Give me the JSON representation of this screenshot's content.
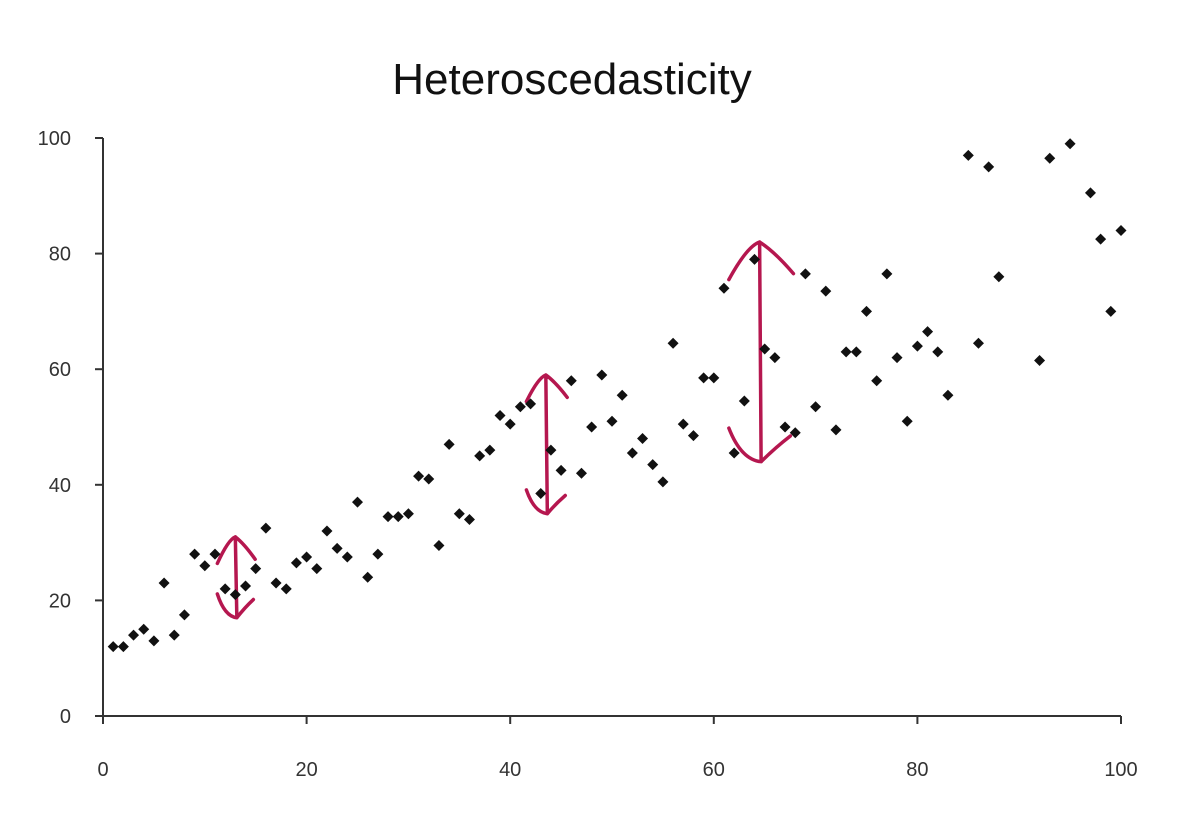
{
  "chart_data": {
    "type": "scatter",
    "title": "Heteroscedasticity",
    "xlabel": "",
    "ylabel": "",
    "xlim": [
      0,
      100
    ],
    "ylim": [
      0,
      100
    ],
    "x_ticks": [
      0,
      20,
      40,
      60,
      80,
      100
    ],
    "y_ticks": [
      0,
      20,
      40,
      60,
      80,
      100
    ],
    "grid": false,
    "legend": "none",
    "marker": "diamond",
    "point_color": "#111111",
    "annotation_color": "#b5174f",
    "points": [
      [
        1,
        12
      ],
      [
        2,
        12
      ],
      [
        3,
        14
      ],
      [
        4,
        15
      ],
      [
        5,
        13
      ],
      [
        6,
        23
      ],
      [
        7,
        14
      ],
      [
        8,
        17.5
      ],
      [
        9,
        28
      ],
      [
        10,
        26
      ],
      [
        11,
        28
      ],
      [
        12,
        22
      ],
      [
        13,
        21
      ],
      [
        14,
        22.5
      ],
      [
        15,
        25.5
      ],
      [
        16,
        32.5
      ],
      [
        17,
        23
      ],
      [
        18,
        22
      ],
      [
        19,
        26.5
      ],
      [
        20,
        27.5
      ],
      [
        21,
        25.5
      ],
      [
        22,
        32
      ],
      [
        23,
        29
      ],
      [
        24,
        27.5
      ],
      [
        25,
        37
      ],
      [
        26,
        24
      ],
      [
        27,
        28
      ],
      [
        28,
        34.5
      ],
      [
        29,
        34.5
      ],
      [
        30,
        35
      ],
      [
        31,
        41.5
      ],
      [
        32,
        41
      ],
      [
        33,
        29.5
      ],
      [
        34,
        47
      ],
      [
        35,
        35
      ],
      [
        36,
        34
      ],
      [
        37,
        45
      ],
      [
        38,
        46
      ],
      [
        39,
        52
      ],
      [
        40,
        50.5
      ],
      [
        41,
        53.5
      ],
      [
        42,
        54
      ],
      [
        43,
        38.5
      ],
      [
        44,
        46
      ],
      [
        45,
        42.5
      ],
      [
        46,
        58
      ],
      [
        47,
        42
      ],
      [
        48,
        50
      ],
      [
        49,
        59
      ],
      [
        50,
        51
      ],
      [
        51,
        55.5
      ],
      [
        52,
        45.5
      ],
      [
        53,
        48
      ],
      [
        54,
        43.5
      ],
      [
        55,
        40.5
      ],
      [
        56,
        64.5
      ],
      [
        57,
        50.5
      ],
      [
        58,
        48.5
      ],
      [
        59,
        58.5
      ],
      [
        60,
        58.5
      ],
      [
        61,
        74
      ],
      [
        62,
        45.5
      ],
      [
        63,
        54.5
      ],
      [
        64,
        79
      ],
      [
        65,
        63.5
      ],
      [
        66,
        62
      ],
      [
        67,
        50
      ],
      [
        68,
        49
      ],
      [
        69,
        76.5
      ],
      [
        70,
        53.5
      ],
      [
        71,
        73.5
      ],
      [
        72,
        49.5
      ],
      [
        73,
        63
      ],
      [
        74,
        63
      ],
      [
        75,
        70
      ],
      [
        76,
        58
      ],
      [
        77,
        76.5
      ],
      [
        78,
        62
      ],
      [
        79,
        51
      ],
      [
        80,
        64
      ],
      [
        81,
        66.5
      ],
      [
        82,
        63
      ],
      [
        83,
        55.5
      ],
      [
        85,
        97
      ],
      [
        86,
        64.5
      ],
      [
        87,
        95
      ],
      [
        88,
        76
      ],
      [
        92,
        61.5
      ],
      [
        93,
        96.5
      ],
      [
        95,
        99
      ],
      [
        97,
        90.5
      ],
      [
        98,
        82.5
      ],
      [
        99,
        70
      ],
      [
        100,
        84
      ]
    ],
    "annotations": [
      {
        "type": "double-arrow",
        "x": 13,
        "y_top": 31,
        "y_bottom": 17
      },
      {
        "type": "double-arrow",
        "x": 43.5,
        "y_top": 59,
        "y_bottom": 35
      },
      {
        "type": "double-arrow",
        "x": 64.5,
        "y_top": 82,
        "y_bottom": 44
      }
    ]
  }
}
